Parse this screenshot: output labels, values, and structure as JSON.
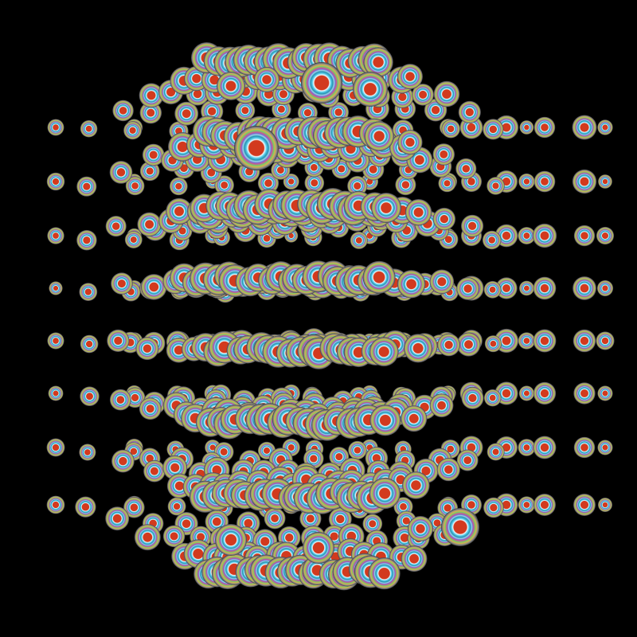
{
  "scene": {
    "description_name": "sphere-lattice",
    "background_color": "#000000",
    "sphere_core_color": "#d23a1e",
    "ring_colors": [
      "#e8f7ff",
      "#4ec9e6",
      "#2a8fb0",
      "#9ad8e8",
      "#7c6bd0",
      "#cf5a8a",
      "#6fcf6a",
      "#d6b24a",
      "#8a8a8a"
    ],
    "rows": 8,
    "columns_far": 12,
    "depth_layers": 6
  }
}
